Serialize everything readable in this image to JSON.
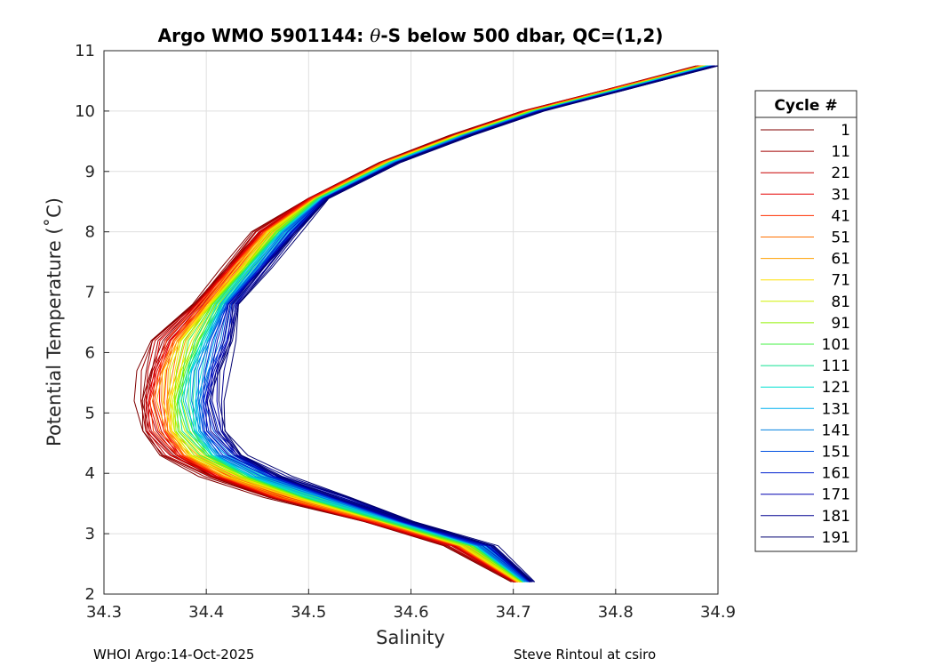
{
  "chart_data": {
    "type": "line",
    "title_parts": {
      "prefix": "Argo WMO 5901144: ",
      "theta": "θ",
      "suffix": "-S below 500 dbar,  QC=(1,2)"
    },
    "xlabel": "Salinity",
    "ylabel": "Potential Temperature (˚C)",
    "xlim": [
      34.3,
      34.9
    ],
    "ylim": [
      2,
      11
    ],
    "x_ticks": [
      "34.3",
      "34.4",
      "34.5",
      "34.6",
      "34.7",
      "34.8",
      "34.9"
    ],
    "y_ticks": [
      "2",
      "3",
      "4",
      "5",
      "6",
      "7",
      "8",
      "9",
      "10",
      "11"
    ],
    "grid": true,
    "legend_title": "Cycle #",
    "legend_position": "right",
    "series": [
      {
        "name": "1",
        "color": "#800000",
        "offset": -0.04
      },
      {
        "name": "11",
        "color": "#A00000",
        "offset": -0.036
      },
      {
        "name": "21",
        "color": "#C80000",
        "offset": -0.032
      },
      {
        "name": "31",
        "color": "#E60000",
        "offset": -0.028
      },
      {
        "name": "41",
        "color": "#FF3000",
        "offset": -0.024
      },
      {
        "name": "51",
        "color": "#FF7000",
        "offset": -0.02
      },
      {
        "name": "61",
        "color": "#FFA000",
        "offset": -0.016
      },
      {
        "name": "71",
        "color": "#FFE000",
        "offset": -0.012
      },
      {
        "name": "81",
        "color": "#D0F000",
        "offset": -0.008
      },
      {
        "name": "91",
        "color": "#90F000",
        "offset": -0.004
      },
      {
        "name": "101",
        "color": "#40F040",
        "offset": 0.0
      },
      {
        "name": "111",
        "color": "#10E090",
        "offset": 0.004
      },
      {
        "name": "121",
        "color": "#00E0D0",
        "offset": 0.008
      },
      {
        "name": "131",
        "color": "#00B0F0",
        "offset": 0.012
      },
      {
        "name": "141",
        "color": "#0080E0",
        "offset": 0.016
      },
      {
        "name": "151",
        "color": "#0050E0",
        "offset": 0.02
      },
      {
        "name": "161",
        "color": "#0020D0",
        "offset": 0.024
      },
      {
        "name": "171",
        "color": "#0000B0",
        "offset": 0.028
      },
      {
        "name": "181",
        "color": "#000090",
        "offset": 0.032
      },
      {
        "name": "191",
        "color": "#000070",
        "offset": 0.036
      }
    ],
    "base_profile": [
      [
        34.89,
        10.75
      ],
      [
        34.8,
        10.35
      ],
      [
        34.72,
        10.0
      ],
      [
        34.65,
        9.6
      ],
      [
        34.58,
        9.15
      ],
      [
        34.51,
        8.55
      ],
      [
        34.47,
        8.0
      ],
      [
        34.44,
        7.4
      ],
      [
        34.41,
        6.8
      ],
      [
        34.39,
        6.2
      ],
      [
        34.38,
        5.7
      ],
      [
        34.375,
        5.2
      ],
      [
        34.38,
        4.7
      ],
      [
        34.4,
        4.3
      ],
      [
        34.44,
        3.95
      ],
      [
        34.5,
        3.6
      ],
      [
        34.58,
        3.2
      ],
      [
        34.66,
        2.8
      ],
      [
        34.71,
        2.2
      ]
    ],
    "footer_left": "WHOI Argo:14-Oct-2025",
    "footer_right": "Steve Rintoul at csiro"
  }
}
